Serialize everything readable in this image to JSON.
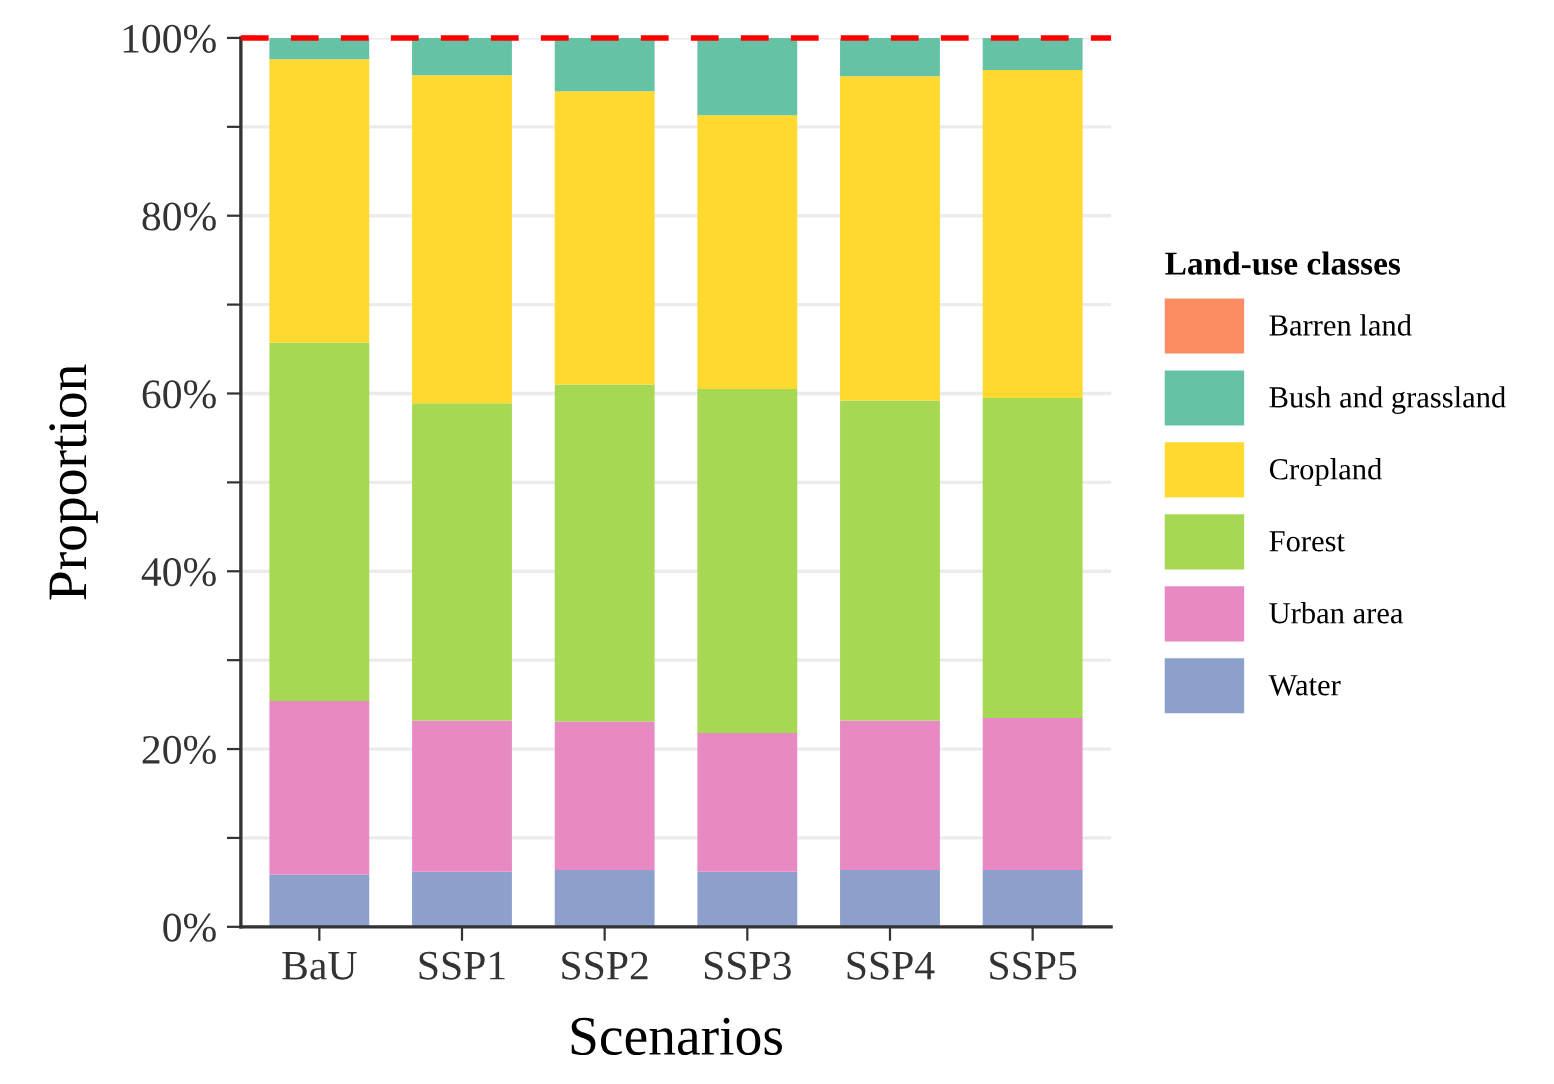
{
  "chart_data": {
    "type": "bar",
    "stacked": true,
    "xlabel": "Scenarios",
    "ylabel": "Proportion",
    "legend_title": "Land-use classes",
    "categories": [
      "BaU",
      "SSP1",
      "SSP2",
      "SSP3",
      "SSP4",
      "SSP5"
    ],
    "series": [
      {
        "name": "Water",
        "color": "#8da0cb",
        "values": [
          5.9,
          6.2,
          6.4,
          6.2,
          6.4,
          6.4
        ]
      },
      {
        "name": "Urban area",
        "color": "#e78ac3",
        "values": [
          19.5,
          17.0,
          16.7,
          15.6,
          16.8,
          17.1
        ]
      },
      {
        "name": "Forest",
        "color": "#a6d854",
        "values": [
          40.3,
          35.7,
          37.9,
          38.7,
          36.0,
          36.0
        ]
      },
      {
        "name": "Cropland",
        "color": "#ffd92f",
        "values": [
          31.9,
          36.9,
          33.0,
          30.8,
          36.5,
          36.9
        ]
      },
      {
        "name": "Bush and grassland",
        "color": "#66c2a5",
        "values": [
          2.4,
          4.2,
          6.0,
          8.7,
          4.3,
          3.6
        ]
      },
      {
        "name": "Barren land",
        "color": "#fc8d62",
        "values": [
          0,
          0,
          0,
          0,
          0,
          0
        ]
      }
    ],
    "ylim": [
      0,
      100
    ],
    "yticks": [
      {
        "value": 0,
        "label": "0%"
      },
      {
        "value": 10,
        "label": null
      },
      {
        "value": 20,
        "label": "20%"
      },
      {
        "value": 30,
        "label": null
      },
      {
        "value": 40,
        "label": "40%"
      },
      {
        "value": 50,
        "label": null
      },
      {
        "value": 60,
        "label": "60%"
      },
      {
        "value": 70,
        "label": null
      },
      {
        "value": 80,
        "label": "80%"
      },
      {
        "value": 90,
        "label": null
      },
      {
        "value": 100,
        "label": "100%"
      }
    ],
    "ref_lines": [
      {
        "axis": "y",
        "value": 100,
        "color": "#ff0000",
        "line_style": "dashed"
      }
    ],
    "grid": "y",
    "legend": "right"
  }
}
